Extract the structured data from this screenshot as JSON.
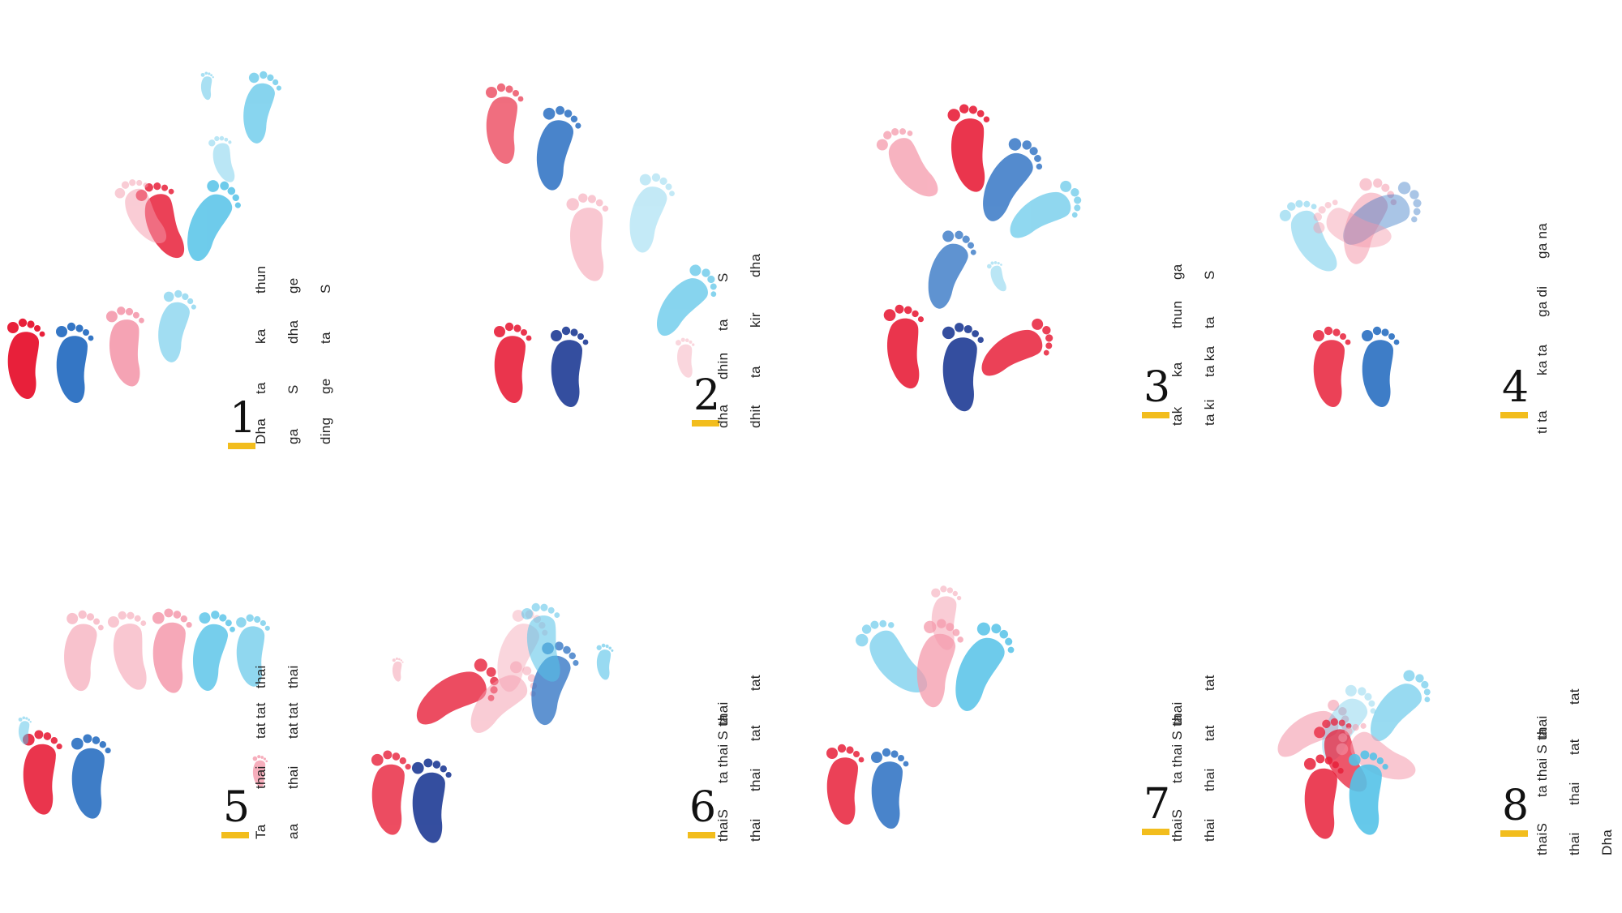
{
  "colors": {
    "red": "#e8203a",
    "pink": "#f59aac",
    "blue": "#2a6fc2",
    "light_blue": "#55c3e8",
    "navy": "#1f3b95",
    "accent": "#f2bd1d"
  },
  "icons": [
    "footprint-icon"
  ],
  "panels": [
    {
      "number": "1",
      "columns": [
        [
          "Dha",
          "ta",
          "ka",
          "thun"
        ],
        [
          "ga",
          "S",
          "dha",
          "ge"
        ],
        [
          "ding",
          "ge",
          "ta",
          "S"
        ]
      ]
    },
    {
      "number": "2",
      "columns": [
        [
          "dha",
          "dhin",
          "ta",
          "S"
        ],
        [
          "dhit",
          "ta",
          "kir",
          "dha"
        ]
      ]
    },
    {
      "number": "3",
      "columns": [
        [
          "tak",
          "ka",
          "thun",
          "ga"
        ],
        [
          "ta ki",
          "ta ka",
          "ta",
          "S"
        ]
      ]
    },
    {
      "number": "4",
      "columns": [
        [
          "ti ta",
          "ka ta",
          "ga di",
          "ga na"
        ]
      ]
    },
    {
      "number": "5",
      "columns": [
        [
          "Ta",
          "thai",
          "tat tat",
          "thai"
        ],
        [
          "aa",
          "thai",
          "tat tat",
          "thai"
        ]
      ]
    },
    {
      "number": "6",
      "columns": [
        [
          "thaiS",
          "ta thai S ta",
          "thai"
        ],
        [
          "thai",
          "thai",
          "tat",
          "tat"
        ]
      ]
    },
    {
      "number": "7",
      "columns": [
        [
          "thaiS",
          "ta thai S ta",
          "thai"
        ],
        [
          "thai",
          "thai",
          "tat",
          "tat"
        ]
      ]
    },
    {
      "number": "8",
      "columns": [
        [
          "thaiS",
          "ta thai S ta",
          "thai"
        ],
        [
          "thai",
          "thai",
          "tat",
          "tat"
        ],
        [
          "Dha"
        ]
      ]
    }
  ]
}
